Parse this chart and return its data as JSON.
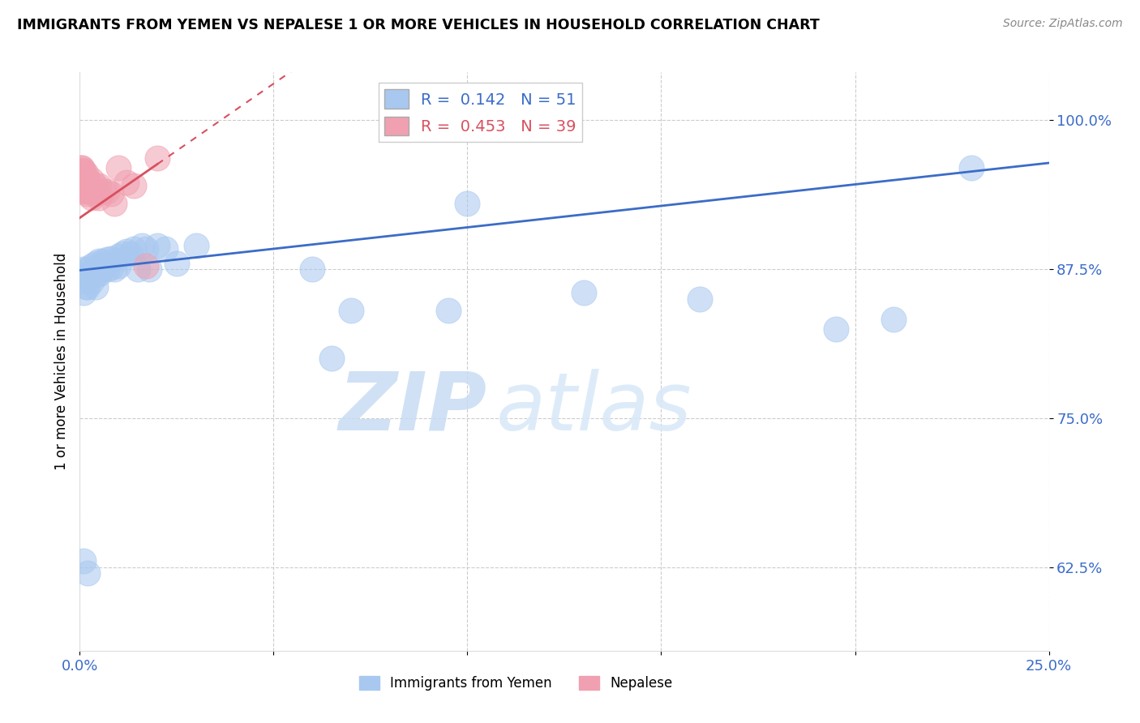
{
  "title": "IMMIGRANTS FROM YEMEN VS NEPALESE 1 OR MORE VEHICLES IN HOUSEHOLD CORRELATION CHART",
  "source": "Source: ZipAtlas.com",
  "ylabel": "1 or more Vehicles in Household",
  "ytick_labels": [
    "62.5%",
    "75.0%",
    "87.5%",
    "100.0%"
  ],
  "ytick_values": [
    0.625,
    0.75,
    0.875,
    1.0
  ],
  "xlim": [
    0.0,
    0.25
  ],
  "ylim": [
    0.555,
    1.04
  ],
  "blue_R": 0.142,
  "blue_N": 51,
  "pink_R": 0.453,
  "pink_N": 39,
  "blue_color": "#A8C8F0",
  "pink_color": "#F0A0B0",
  "blue_line_color": "#3B6CC8",
  "pink_line_color": "#D85060",
  "legend_label_blue": "Immigrants from Yemen",
  "legend_label_pink": "Nepalese",
  "blue_points_x": [
    0.0005,
    0.001,
    0.001,
    0.001,
    0.0015,
    0.002,
    0.002,
    0.002,
    0.003,
    0.003,
    0.003,
    0.004,
    0.004,
    0.004,
    0.004,
    0.005,
    0.005,
    0.005,
    0.006,
    0.006,
    0.007,
    0.007,
    0.008,
    0.008,
    0.009,
    0.01,
    0.01,
    0.011,
    0.012,
    0.013,
    0.014,
    0.015,
    0.016,
    0.017,
    0.018,
    0.02,
    0.022,
    0.025,
    0.03,
    0.06,
    0.065,
    0.07,
    0.095,
    0.1,
    0.13,
    0.16,
    0.195,
    0.21,
    0.23,
    0.001,
    0.002
  ],
  "blue_points_y": [
    0.87,
    0.875,
    0.865,
    0.855,
    0.86,
    0.87,
    0.875,
    0.86,
    0.878,
    0.872,
    0.865,
    0.88,
    0.875,
    0.87,
    0.86,
    0.882,
    0.878,
    0.871,
    0.882,
    0.875,
    0.883,
    0.875,
    0.884,
    0.876,
    0.875,
    0.886,
    0.878,
    0.888,
    0.89,
    0.888,
    0.892,
    0.875,
    0.895,
    0.892,
    0.875,
    0.895,
    0.892,
    0.88,
    0.895,
    0.875,
    0.8,
    0.84,
    0.84,
    0.93,
    0.855,
    0.85,
    0.825,
    0.833,
    0.96,
    0.63,
    0.62
  ],
  "pink_points_x": [
    0.0003,
    0.0004,
    0.0005,
    0.0006,
    0.0007,
    0.0007,
    0.0008,
    0.0009,
    0.001,
    0.001,
    0.001,
    0.0012,
    0.0013,
    0.0014,
    0.0015,
    0.0016,
    0.0017,
    0.0018,
    0.002,
    0.002,
    0.0022,
    0.0025,
    0.003,
    0.003,
    0.003,
    0.0035,
    0.004,
    0.004,
    0.005,
    0.005,
    0.006,
    0.007,
    0.008,
    0.009,
    0.01,
    0.012,
    0.014,
    0.017,
    0.02
  ],
  "pink_points_y": [
    0.96,
    0.955,
    0.95,
    0.96,
    0.955,
    0.945,
    0.958,
    0.948,
    0.957,
    0.947,
    0.94,
    0.952,
    0.948,
    0.942,
    0.955,
    0.948,
    0.942,
    0.938,
    0.95,
    0.94,
    0.945,
    0.94,
    0.95,
    0.942,
    0.935,
    0.94,
    0.945,
    0.938,
    0.945,
    0.935,
    0.94,
    0.94,
    0.938,
    0.93,
    0.96,
    0.948,
    0.945,
    0.878,
    0.968
  ],
  "watermark_zip": "ZIP",
  "watermark_atlas": "atlas",
  "grid_color": "#cccccc"
}
